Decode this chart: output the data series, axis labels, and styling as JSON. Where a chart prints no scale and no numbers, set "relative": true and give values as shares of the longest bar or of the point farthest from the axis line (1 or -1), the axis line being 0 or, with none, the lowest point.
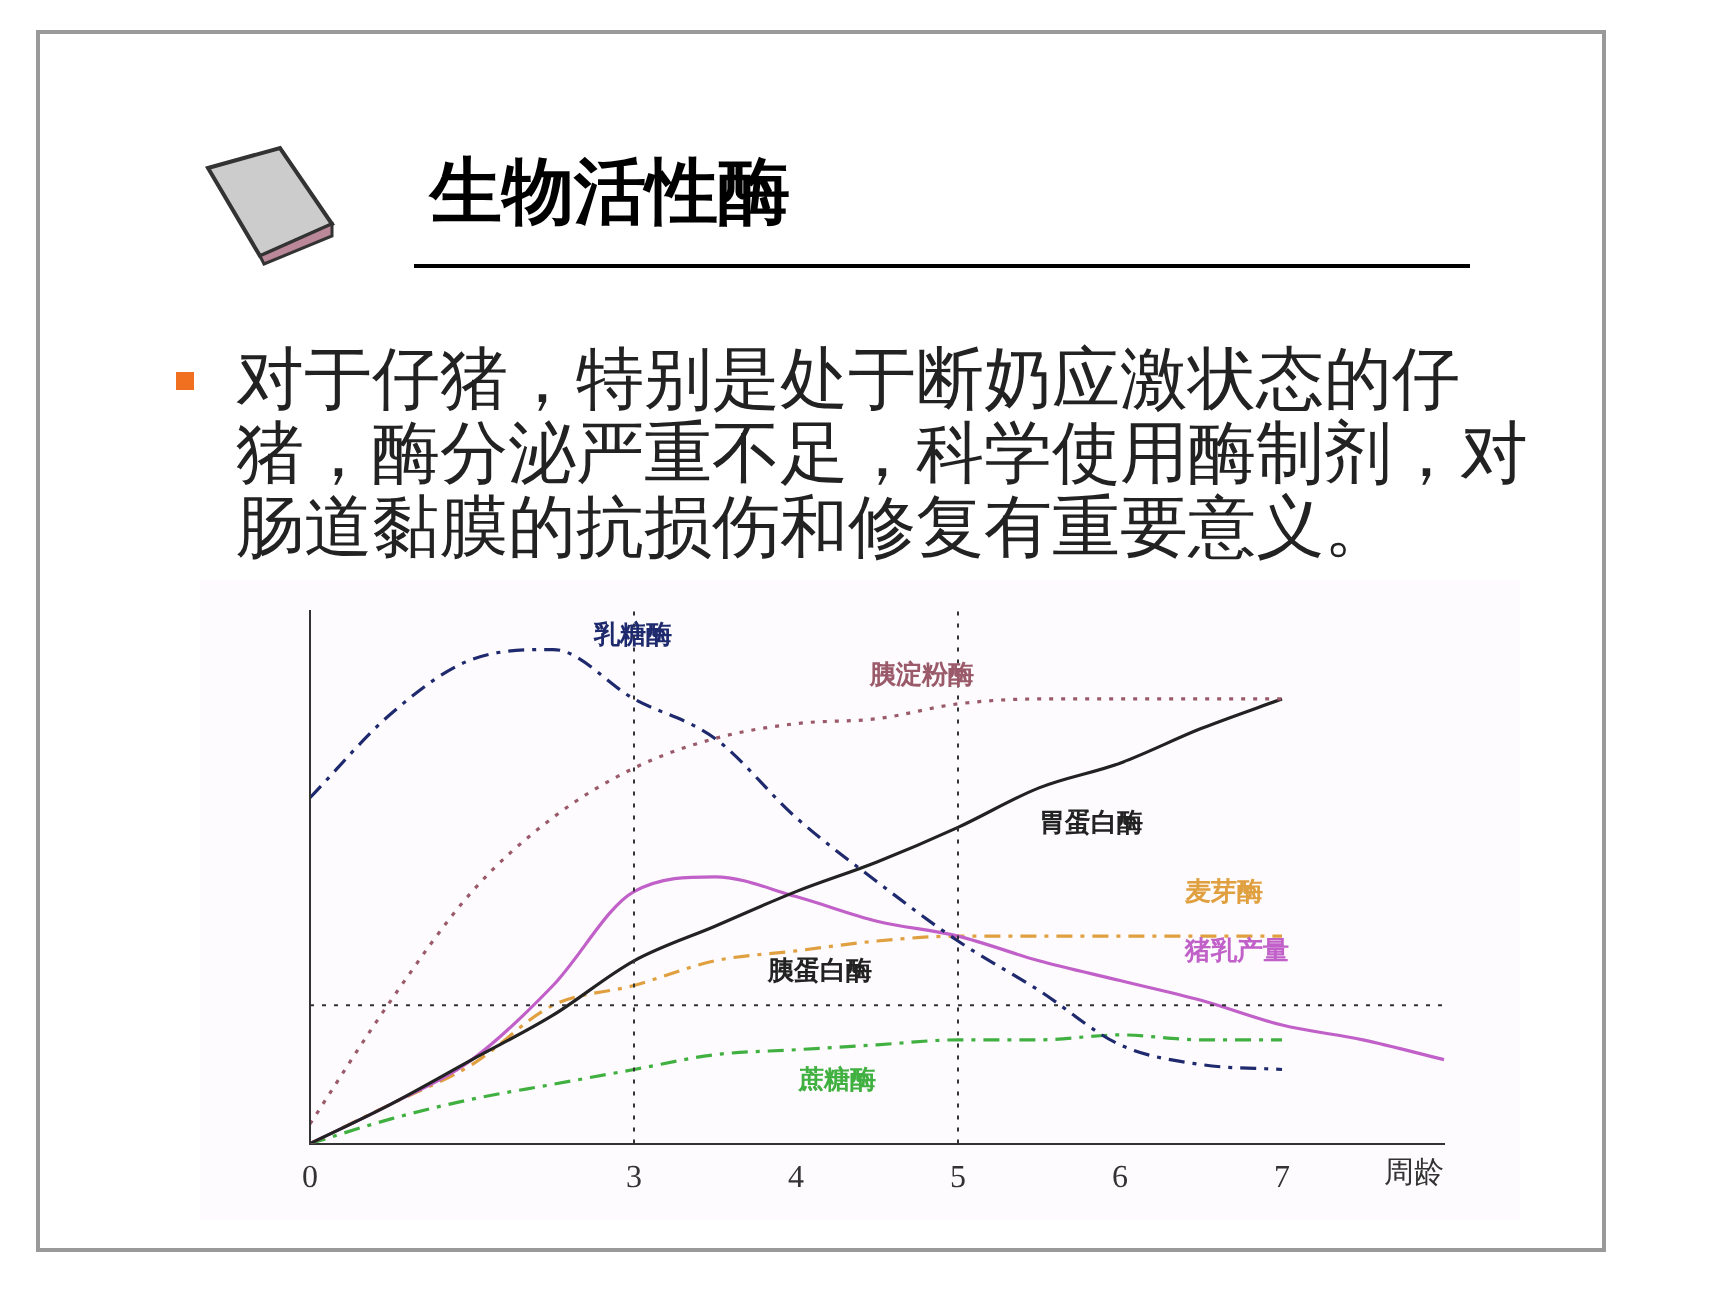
{
  "chart_data": {
    "type": "line",
    "title": "生物活性酶",
    "subtitle": "对于仔猪，特别是处于断奶应激状态的仔猪，酶分泌严重不足，科学使用酶制剂，对肠道黏膜的抗损伤和修复有重要意义。",
    "xlabel": "周龄",
    "relative": true,
    "grid": false,
    "legend": false,
    "marker": "none",
    "categories": [
      "0",
      null,
      null,
      null,
      "3",
      null,
      "4",
      null,
      "5",
      null,
      "6",
      null,
      "7",
      null,
      null
    ],
    "series": [
      {
        "name": "乳糖酶",
        "color": "#1f2a6e",
        "line_style": "dashed",
        "values": [
          0.7,
          0.87,
          0.98,
          1,
          0.9,
          0.82,
          0.66,
          0.53,
          0.41,
          0.31,
          0.2,
          0.16,
          0.15,
          null,
          null
        ]
      },
      {
        "name": "胰淀粉酶",
        "color": "#9a5a6a",
        "line_style": "dotted",
        "values": [
          0.04,
          0.29,
          0.51,
          0.66,
          0.76,
          0.82,
          0.85,
          0.86,
          0.89,
          0.9,
          0.9,
          0.9,
          0.9,
          null,
          null
        ]
      },
      {
        "name": "胃蛋白酶",
        "color": "#222222",
        "line_style": "solid",
        "values": [
          0,
          0.08,
          0.17,
          0.26,
          0.37,
          0.44,
          0.51,
          0.57,
          0.64,
          0.72,
          0.77,
          0.84,
          0.9,
          null,
          null
        ]
      },
      {
        "name": "猪乳产量",
        "color": "#c060c8",
        "line_style": "solid",
        "values": [
          0,
          0.08,
          0.17,
          0.32,
          0.51,
          0.54,
          0.5,
          0.45,
          0.42,
          0.37,
          0.33,
          0.29,
          0.24,
          0.21,
          0.17
        ]
      },
      {
        "name": "麦芽酶",
        "color": "#e0a040",
        "line_style": "dashed",
        "values": [
          0,
          0.08,
          0.16,
          0.28,
          0.32,
          0.37,
          0.39,
          0.41,
          0.42,
          0.42,
          0.42,
          0.42,
          0.42,
          null,
          null
        ]
      },
      {
        "name": "蔗糖酶",
        "color": "#40b040",
        "line_style": "dashed",
        "values": [
          0,
          0.05,
          0.09,
          0.12,
          0.15,
          0.18,
          0.19,
          0.2,
          0.21,
          0.21,
          0.22,
          0.21,
          0.21,
          null,
          null
        ]
      }
    ],
    "ref_lines": [
      {
        "axis": "y",
        "value": 0.28,
        "color": "#333333",
        "line_style": "dotted"
      },
      {
        "axis": "x",
        "value": "3",
        "color": "#333333",
        "line_style": "dotted"
      },
      {
        "axis": "x",
        "value": "5",
        "color": "#333333",
        "line_style": "dotted"
      }
    ],
    "annotations": [
      "胰蛋白酶"
    ]
  }
}
